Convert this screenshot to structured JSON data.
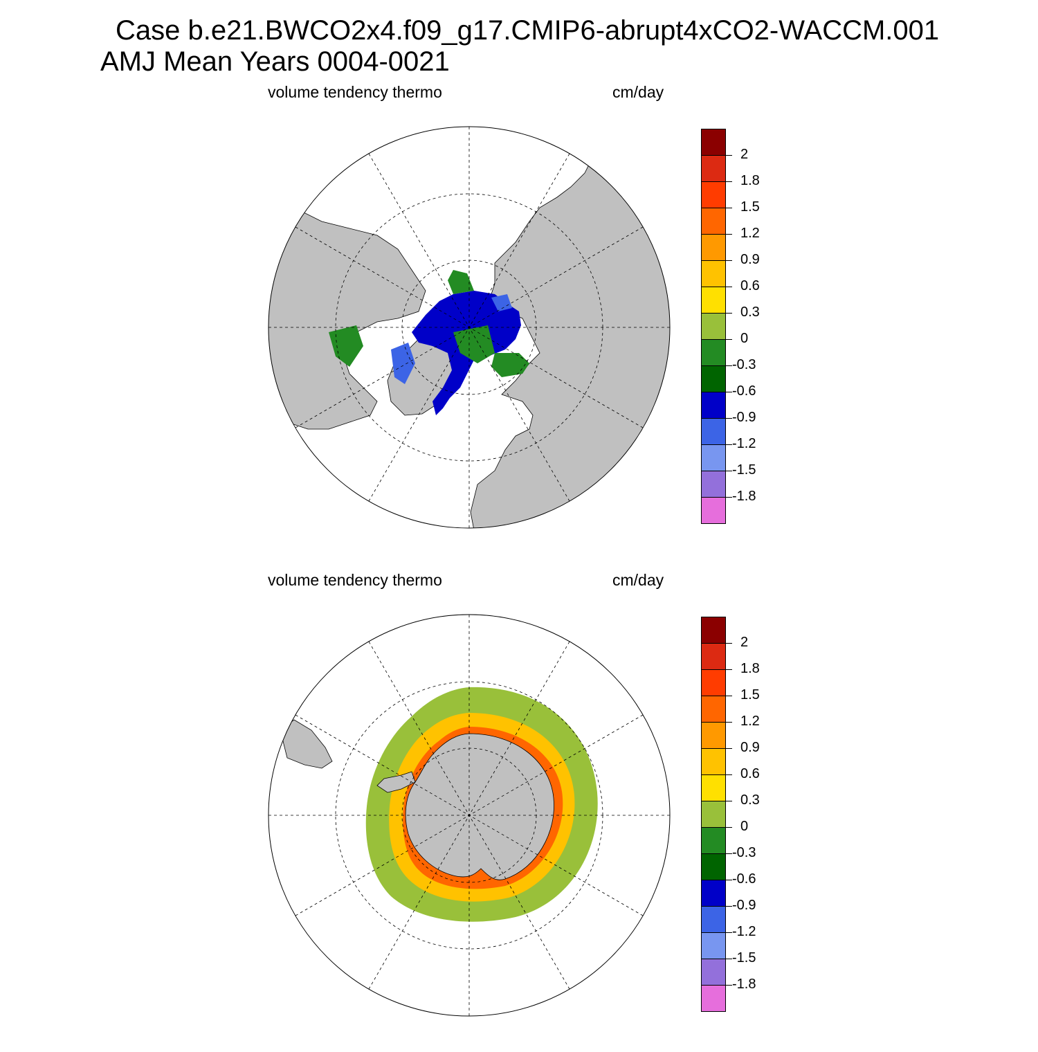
{
  "title": {
    "line1": "Case b.e21.BWCO2x4.f09_g17.CMIP6-abrupt4xCO2-WACCM.001",
    "line2": "AMJ Mean   Years 0004-0021"
  },
  "panels": [
    {
      "id": "north",
      "hemisphere": "Arctic (north polar stereographic)",
      "variable": "volume tendency thermo",
      "units": "cm/day"
    },
    {
      "id": "south",
      "hemisphere": "Antarctic (south polar stereographic)",
      "variable": "volume tendency thermo",
      "units": "cm/day"
    }
  ],
  "colorbar": {
    "labels": [
      "2",
      "1.8",
      "1.5",
      "1.2",
      "0.9",
      "0.6",
      "0.3",
      "0",
      "-0.3",
      "-0.6",
      "-0.9",
      "-1.2",
      "-1.5",
      "-1.8"
    ],
    "colors": [
      "#8b0000",
      "#dc2a12",
      "#ff3c00",
      "#ff6600",
      "#ff9900",
      "#ffc200",
      "#ffe000",
      "#99c03a",
      "#238b23",
      "#006400",
      "#0000c8",
      "#3c64e6",
      "#7896f0",
      "#9370db",
      "#e66edc"
    ]
  },
  "map_colors": {
    "land": "#c0c0c0",
    "ocean": "#ffffff"
  }
}
